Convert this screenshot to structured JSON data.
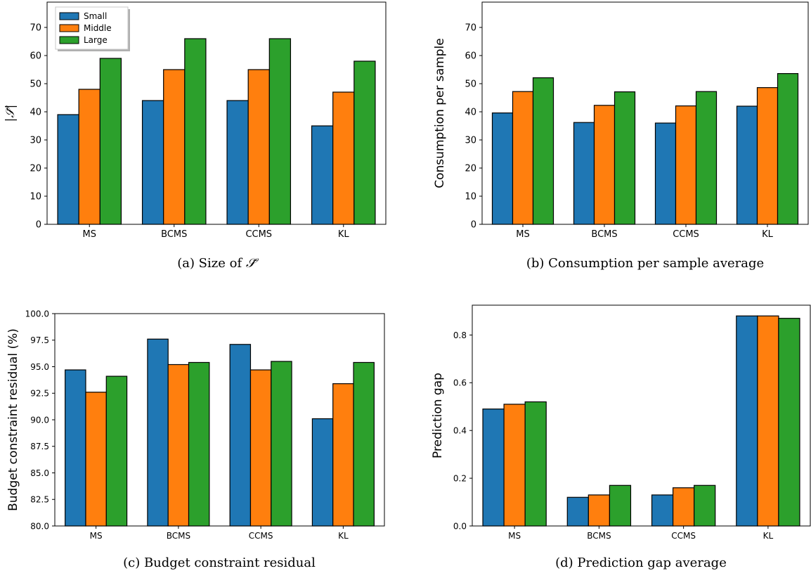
{
  "colors": {
    "Small": "#1f77b4",
    "Middle": "#ff7f0e",
    "Large": "#2ca02c",
    "edge": "#000000",
    "axis": "#000000"
  },
  "legend_labels": [
    "Small",
    "Middle",
    "Large"
  ],
  "chart_data": [
    {
      "type": "bar",
      "panel": "a",
      "caption": "(a) Size of S̃",
      "caption_prefix": "(a) Size of ",
      "caption_math": "𝒮̃",
      "categories": [
        "MS",
        "BCMS",
        "CCMS",
        "KL"
      ],
      "series": [
        {
          "name": "Small",
          "values": [
            39,
            44,
            44,
            35
          ]
        },
        {
          "name": "Middle",
          "values": [
            48,
            55,
            55,
            47
          ]
        },
        {
          "name": "Large",
          "values": [
            59,
            66,
            66,
            58
          ]
        }
      ],
      "ylabel": "|𝒮̃|",
      "ylim": [
        0,
        79
      ],
      "yticks": [
        "0",
        "10",
        "20",
        "30",
        "40",
        "50",
        "60",
        "70"
      ],
      "legend": "top-left",
      "grid": false
    },
    {
      "type": "bar",
      "panel": "b",
      "caption": "(b) Consumption per sample average",
      "categories": [
        "MS",
        "BCMS",
        "CCMS",
        "KL"
      ],
      "series": [
        {
          "name": "Small",
          "values": [
            39.6,
            36.2,
            36.0,
            42.0
          ]
        },
        {
          "name": "Middle",
          "values": [
            47.2,
            42.3,
            42.1,
            48.6
          ]
        },
        {
          "name": "Large",
          "values": [
            52.1,
            47.1,
            47.2,
            53.6
          ]
        }
      ],
      "ylabel": "Consumption per sample",
      "ylim": [
        0,
        79
      ],
      "yticks": [
        "0",
        "10",
        "20",
        "30",
        "40",
        "50",
        "60",
        "70"
      ],
      "grid": false
    },
    {
      "type": "bar",
      "panel": "c",
      "caption": "(c) Budget constraint residual",
      "categories": [
        "MS",
        "BCMS",
        "CCMS",
        "KL"
      ],
      "series": [
        {
          "name": "Small",
          "values": [
            94.7,
            97.6,
            97.1,
            90.1
          ]
        },
        {
          "name": "Middle",
          "values": [
            92.6,
            95.2,
            94.7,
            93.4
          ]
        },
        {
          "name": "Large",
          "values": [
            94.1,
            95.4,
            95.5,
            95.4
          ]
        }
      ],
      "ylabel": "Budget constraint residual (%)",
      "ylim": [
        80,
        100
      ],
      "yticks": [
        "80.0",
        "82.5",
        "85.0",
        "87.5",
        "90.0",
        "92.5",
        "95.0",
        "97.5",
        "100.0"
      ],
      "grid": false
    },
    {
      "type": "bar",
      "panel": "d",
      "caption": "(d) Prediction gap average",
      "categories": [
        "MS",
        "BCMS",
        "CCMS",
        "KL"
      ],
      "series": [
        {
          "name": "Small",
          "values": [
            0.49,
            0.12,
            0.13,
            0.88
          ]
        },
        {
          "name": "Middle",
          "values": [
            0.51,
            0.13,
            0.16,
            0.88
          ]
        },
        {
          "name": "Large",
          "values": [
            0.52,
            0.17,
            0.17,
            0.87
          ]
        }
      ],
      "ylabel": "Prediction gap",
      "ylim": [
        0,
        0.925
      ],
      "yticks": [
        "0.0",
        "0.2",
        "0.4",
        "0.6",
        "0.8"
      ],
      "grid": false
    }
  ]
}
